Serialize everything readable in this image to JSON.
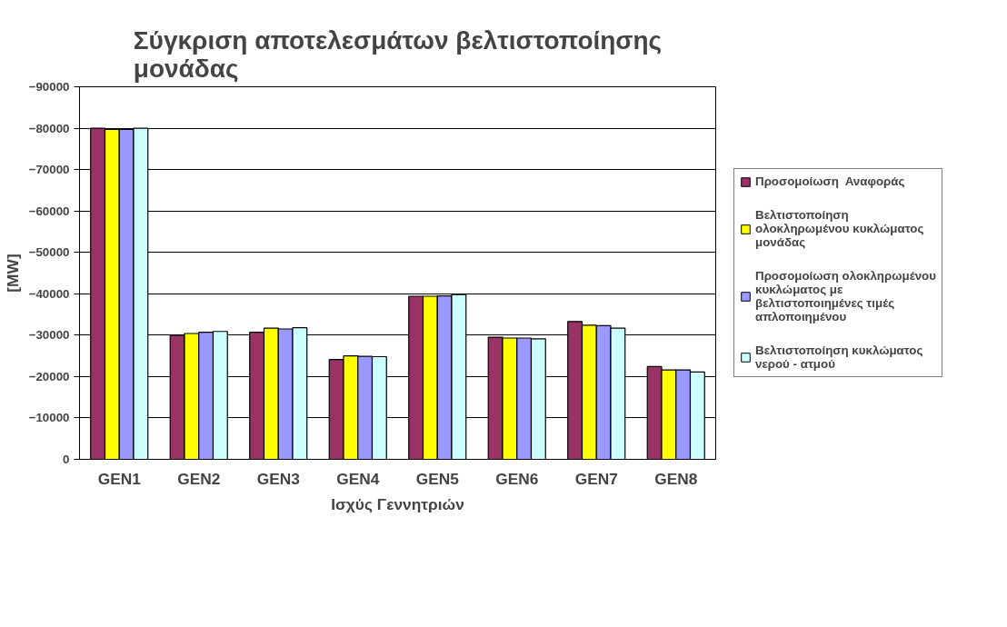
{
  "chart_data": {
    "type": "bar",
    "title": "Σύγκριση αποτελεσμάτων βελτιστοποίησης μονάδας",
    "xlabel": "Ισχύς Γεννητριών",
    "ylabel": "[MW]",
    "categories": [
      "GEN1",
      "GEN2",
      "GEN3",
      "GEN4",
      "GEN5",
      "GEN6",
      "GEN7",
      "GEN8"
    ],
    "series": [
      {
        "name": "Προσομοίωση  Αναφοράς",
        "color": "#993366",
        "values": [
          -80000,
          -30000,
          -30700,
          -24100,
          -39400,
          -29500,
          -33300,
          -22400
        ]
      },
      {
        "name": "Βελτιστοποίηση ολοκληρωμένου κυκλώματος μονάδας",
        "color": "#ffff00",
        "values": [
          -79700,
          -30400,
          -31700,
          -25000,
          -39400,
          -29300,
          -32400,
          -21600
        ]
      },
      {
        "name": "Προσομοίωση ολοκληρωμένου κυκλώματος με βελτιστοποιημένες τιμές απλοποιημένου",
        "color": "#9999ff",
        "values": [
          -79700,
          -30700,
          -31500,
          -24900,
          -39500,
          -29300,
          -32300,
          -21600
        ]
      },
      {
        "name": "Βελτιστοποίηση κυκλώματος νερού - ατμού",
        "color": "#ccffff",
        "values": [
          -80000,
          -30900,
          -31800,
          -24800,
          -39800,
          -29100,
          -31700,
          -21100
        ]
      }
    ],
    "ylim": [
      0,
      -90000
    ],
    "yticks": [
      0,
      -10000,
      -20000,
      -30000,
      -40000,
      -50000,
      -60000,
      -70000,
      -80000,
      -90000
    ],
    "grid": "y",
    "legend": "right"
  }
}
